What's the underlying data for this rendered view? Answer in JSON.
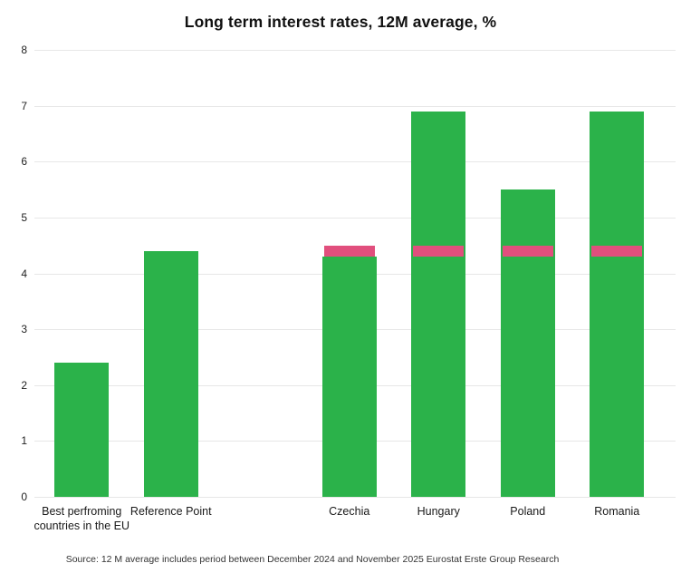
{
  "chart_data": {
    "type": "bar",
    "title": "Long term interest rates, 12M average, %",
    "categories": [
      "Best perfroming countries in the EU",
      "Reference Point",
      "Czechia",
      "Hungary",
      "Poland",
      "Romania"
    ],
    "series": [
      {
        "name": "Long term interest rate, 12M average, %",
        "values": [
          2.4,
          4.4,
          4.3,
          6.9,
          5.5,
          6.9
        ]
      }
    ],
    "reference_band": {
      "from": 4.3,
      "to": 4.5,
      "applies_to": [
        "Czechia",
        "Hungary",
        "Poland",
        "Romania"
      ]
    },
    "bar_slots": [
      0,
      1,
      3,
      4,
      5,
      6
    ],
    "total_slots": 7,
    "ylim": [
      0,
      8
    ],
    "ytick_step": 1,
    "yticks": [
      0,
      1,
      2,
      3,
      4,
      5,
      6,
      7,
      8
    ],
    "grid": "horizontal",
    "legend": "none",
    "colors": {
      "bar_green": "#2bb24a",
      "band_pink": "#e14f7d",
      "grid": "#e7e7e7",
      "text": "#1a1a1a"
    }
  },
  "footer": {
    "source": "Source: 12 M average includes period between December 2024 and November 2025 Eurostat Erste Group Research"
  }
}
